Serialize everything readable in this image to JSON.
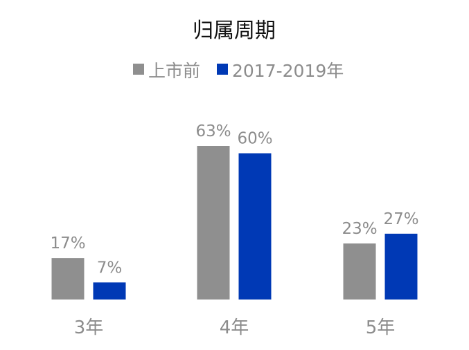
{
  "chart_data": {
    "type": "bar",
    "title": "归属周期",
    "categories": [
      "3年",
      "4年",
      "5年"
    ],
    "series": [
      {
        "name": "上市前",
        "color": "#8f8f8f",
        "values": [
          17,
          63,
          23
        ],
        "labels": [
          "17%",
          "63%",
          "23%"
        ]
      },
      {
        "name": "2017-2019年",
        "color": "#0039b5",
        "values": [
          7,
          60,
          27
        ],
        "labels": [
          "7%",
          "60%",
          "27%"
        ]
      }
    ],
    "unit": "%",
    "ylim": [
      0,
      63
    ],
    "legend": "top",
    "grid": false,
    "axes_visible": false
  }
}
